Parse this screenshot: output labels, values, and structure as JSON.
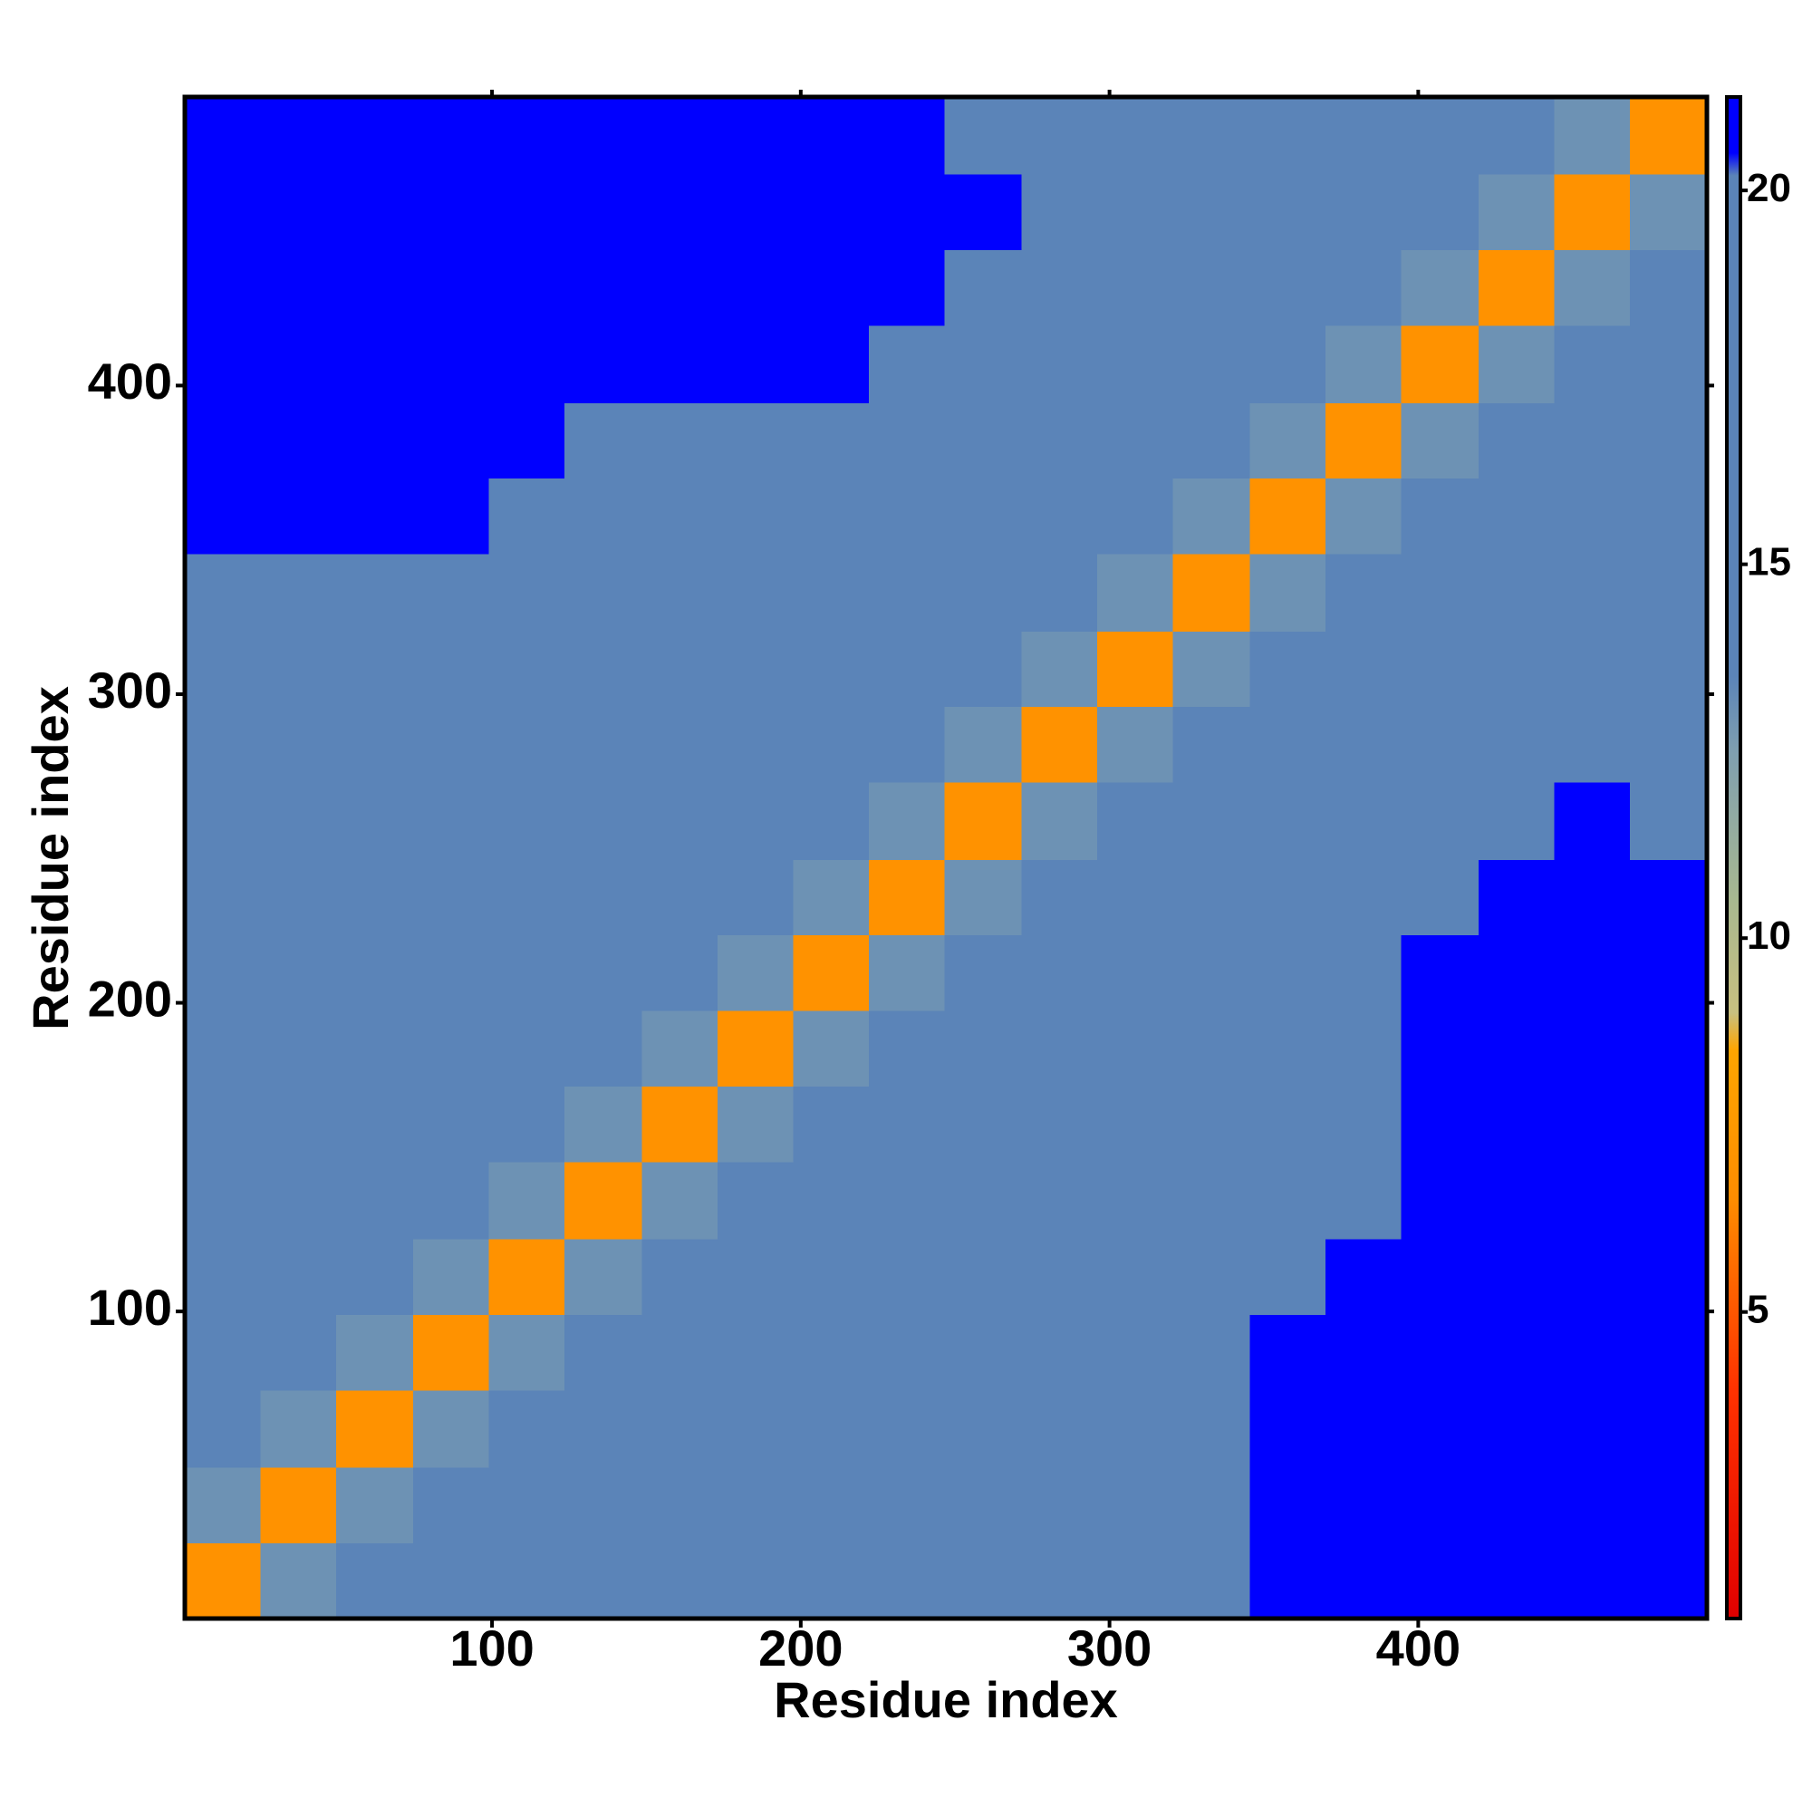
{
  "chart_data": {
    "type": "heatmap",
    "x_label": "Residue index",
    "y_label": "Residue index",
    "x": [
      13,
      37,
      62,
      87,
      111,
      136,
      161,
      185,
      210,
      234,
      259,
      284,
      308,
      333,
      358,
      382,
      407,
      432,
      456,
      481
    ],
    "y": [
      13,
      37,
      62,
      87,
      111,
      136,
      161,
      185,
      210,
      234,
      259,
      284,
      308,
      333,
      358,
      382,
      407,
      432,
      456,
      481
    ],
    "z": [
      [
        7,
        13,
        16,
        16,
        16,
        16,
        16,
        16,
        17,
        18,
        18,
        18,
        18,
        20,
        21,
        21,
        21,
        21,
        21,
        21
      ],
      [
        13,
        7,
        13,
        16,
        16,
        16,
        16,
        16,
        16,
        16,
        16,
        16,
        18,
        20,
        21,
        21,
        21,
        21,
        21,
        21
      ],
      [
        16,
        13,
        7,
        13,
        16,
        16,
        16,
        16,
        16,
        16,
        16,
        16,
        18,
        20,
        21,
        21,
        21,
        21,
        21,
        21
      ],
      [
        16,
        16,
        13,
        7,
        13,
        16,
        16,
        16,
        16,
        16,
        16,
        16,
        18,
        20,
        21,
        21,
        21,
        21,
        21,
        21
      ],
      [
        16,
        16,
        16,
        13,
        7,
        13,
        16,
        16,
        16,
        16,
        16,
        16,
        17,
        18,
        20,
        21,
        21,
        21,
        21,
        21
      ],
      [
        16,
        16,
        16,
        16,
        13,
        7,
        13,
        16,
        16,
        16,
        16,
        16,
        17,
        18,
        20,
        20,
        21,
        21,
        21,
        21
      ],
      [
        16,
        16,
        16,
        16,
        16,
        13,
        7,
        13,
        16,
        16,
        16,
        16,
        17,
        18,
        20,
        20,
        21,
        21,
        21,
        21
      ],
      [
        16,
        16,
        16,
        16,
        16,
        16,
        13,
        7,
        13,
        16,
        16,
        16,
        17,
        18,
        18,
        20,
        21,
        21,
        21,
        21
      ],
      [
        17,
        16,
        16,
        16,
        16,
        16,
        16,
        13,
        7,
        13,
        16,
        16,
        17,
        17,
        18,
        18,
        21,
        21,
        21,
        21
      ],
      [
        18,
        16,
        16,
        16,
        16,
        16,
        16,
        16,
        13,
        7,
        13,
        16,
        17,
        17,
        18,
        18,
        19,
        21,
        21,
        21
      ],
      [
        18,
        16,
        16,
        16,
        16,
        16,
        16,
        16,
        16,
        13,
        7,
        13,
        17,
        17,
        18,
        18,
        19,
        20,
        21,
        20
      ],
      [
        18,
        16,
        16,
        16,
        16,
        16,
        16,
        16,
        16,
        16,
        13,
        7,
        13,
        16,
        16,
        16,
        16,
        16,
        16,
        17
      ],
      [
        18,
        18,
        18,
        18,
        17,
        17,
        17,
        17,
        17,
        17,
        17,
        13,
        7,
        13,
        16,
        16,
        16,
        16,
        16,
        16
      ],
      [
        20,
        20,
        20,
        20,
        18,
        18,
        18,
        18,
        17,
        17,
        17,
        16,
        13,
        7,
        13,
        16,
        16,
        16,
        16,
        16
      ],
      [
        21,
        21,
        21,
        21,
        20,
        20,
        20,
        18,
        18,
        18,
        18,
        16,
        16,
        13,
        7,
        13,
        16,
        16,
        16,
        16
      ],
      [
        21,
        21,
        21,
        21,
        21,
        20,
        20,
        20,
        18,
        18,
        18,
        16,
        16,
        16,
        13,
        7,
        13,
        16,
        16,
        16
      ],
      [
        21,
        21,
        21,
        21,
        21,
        21,
        21,
        21,
        21,
        19,
        19,
        16,
        16,
        16,
        16,
        13,
        7,
        13,
        16,
        16
      ],
      [
        21,
        21,
        21,
        21,
        21,
        21,
        21,
        21,
        21,
        21,
        20,
        16,
        16,
        16,
        16,
        16,
        13,
        7,
        13,
        16
      ],
      [
        21,
        21,
        21,
        21,
        21,
        21,
        21,
        21,
        21,
        21,
        21,
        16,
        16,
        16,
        16,
        16,
        16,
        13,
        7,
        13
      ],
      [
        21,
        21,
        21,
        21,
        21,
        21,
        21,
        21,
        21,
        21,
        20,
        17,
        16,
        16,
        16,
        16,
        16,
        16,
        13,
        7
      ]
    ],
    "xlim": [
      0.5,
      493.5
    ],
    "ylim": [
      0.5,
      493.5
    ],
    "xticks": [
      100,
      200,
      300,
      400
    ],
    "yticks": [
      100,
      200,
      300,
      400
    ],
    "colorbar": {
      "lim": [
        0.9,
        21.25
      ],
      "ticks": [
        5,
        10,
        15,
        20
      ]
    },
    "colorscale": [
      {
        "value": 0.9,
        "color": "#e00000"
      },
      {
        "value": 4,
        "color": "#ff3300"
      },
      {
        "value": 6.5,
        "color": "#ff8c00"
      },
      {
        "value": 8.5,
        "color": "#ffa500"
      },
      {
        "value": 9,
        "color": "#c8c080"
      },
      {
        "value": 10.5,
        "color": "#a8b890"
      },
      {
        "value": 12.5,
        "color": "#7f9fb0"
      },
      {
        "value": 13.5,
        "color": "#5b84b8"
      },
      {
        "value": 20.2,
        "color": "#5b84b8"
      },
      {
        "value": 20.5,
        "color": "#0000ff"
      },
      {
        "value": 21.25,
        "color": "#0000ff"
      }
    ]
  }
}
